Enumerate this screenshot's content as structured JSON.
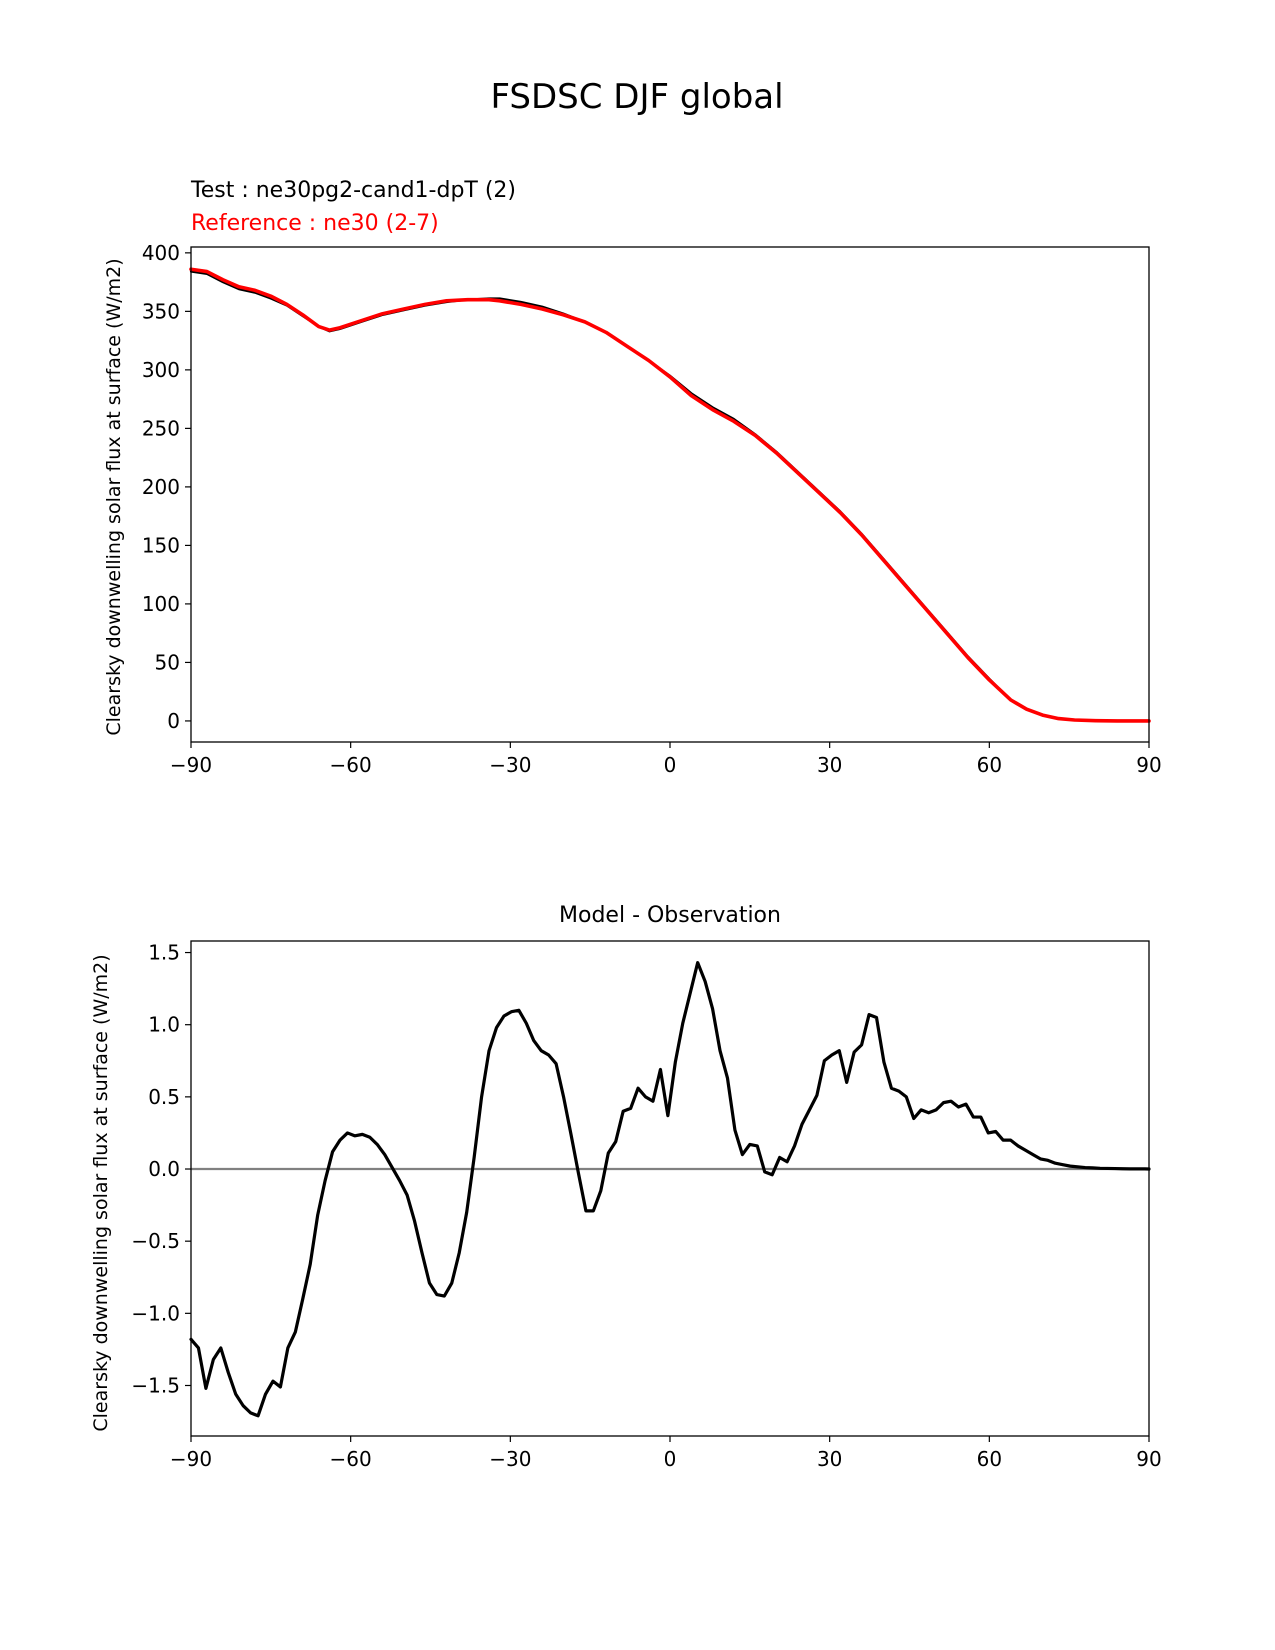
{
  "suptitle": "FSDSC DJF global",
  "chart_data": [
    {
      "type": "line",
      "title": "",
      "legend_test": "Test : ne30pg2-cand1-dpT (2)",
      "legend_ref": "Reference : ne30 (2-7)",
      "ylabel": "Clearsky downwelling solar flux at surface (W/m2)",
      "xlabel": "",
      "xlim": [
        -90,
        90
      ],
      "ylim": [
        -18,
        405
      ],
      "xticks": [
        -90,
        -60,
        -30,
        0,
        30,
        60,
        90
      ],
      "xtick_labels": [
        "−90",
        "−60",
        "−30",
        "0",
        "30",
        "60",
        "90"
      ],
      "yticks": [
        0,
        50,
        100,
        150,
        200,
        250,
        300,
        350,
        400
      ],
      "ytick_labels": [
        "0",
        "50",
        "100",
        "150",
        "200",
        "250",
        "300",
        "350",
        "400"
      ],
      "series": [
        {
          "name": "Test : ne30pg2-cand1-dpT (2)",
          "color": "#000000",
          "x": [
            -90,
            -87,
            -84,
            -81,
            -78,
            -75,
            -72,
            -69,
            -66,
            -64,
            -62,
            -58,
            -54,
            -50,
            -46,
            -42,
            -38,
            -34,
            -32,
            -28,
            -24,
            -20,
            -16,
            -12,
            -8,
            -4,
            0,
            4,
            8,
            12,
            16,
            20,
            24,
            28,
            32,
            36,
            40,
            44,
            48,
            52,
            56,
            60,
            64,
            67,
            70,
            73,
            76,
            80,
            84,
            88,
            90
          ],
          "values": [
            384,
            382,
            375,
            369,
            366,
            361,
            355,
            346,
            337,
            333,
            335,
            341,
            347,
            351,
            355,
            358,
            360,
            361,
            361,
            358,
            354,
            348,
            341,
            332,
            320,
            308,
            295,
            280,
            268,
            258,
            245,
            230,
            213,
            196,
            179,
            160,
            139,
            118,
            97,
            76,
            55,
            36,
            18,
            10,
            5,
            2,
            0.8,
            0.2,
            0,
            0,
            0
          ]
        },
        {
          "name": "Reference : ne30 (2-7)",
          "color": "#ff0000",
          "x": [
            -90,
            -87,
            -84,
            -81,
            -78,
            -75,
            -72,
            -69,
            -66,
            -64,
            -62,
            -58,
            -54,
            -50,
            -46,
            -42,
            -38,
            -34,
            -32,
            -28,
            -24,
            -20,
            -16,
            -12,
            -8,
            -4,
            0,
            4,
            8,
            12,
            16,
            20,
            24,
            28,
            32,
            36,
            40,
            44,
            48,
            52,
            56,
            60,
            64,
            67,
            70,
            73,
            76,
            80,
            84,
            88,
            90
          ],
          "values": [
            386,
            384,
            377,
            371,
            368,
            363,
            356,
            347,
            337,
            334,
            336,
            342,
            348,
            352,
            356,
            359,
            360,
            360,
            359,
            356,
            352,
            347,
            341,
            332,
            320,
            308,
            294,
            278,
            266,
            256,
            244,
            229,
            212,
            195,
            178,
            159,
            138,
            117,
            96,
            75,
            54,
            35,
            18,
            10,
            5,
            2,
            0.8,
            0.2,
            0,
            0,
            0
          ]
        }
      ]
    },
    {
      "type": "line",
      "title": "Model - Observation",
      "ylabel": "Clearsky downwelling solar flux at surface (W/m2)",
      "xlabel": "",
      "xlim": [
        -90,
        90
      ],
      "ylim": [
        -1.85,
        1.58
      ],
      "xticks": [
        -90,
        -60,
        -30,
        0,
        30,
        60,
        90
      ],
      "xtick_labels": [
        "−90",
        "−60",
        "−30",
        "0",
        "30",
        "60",
        "90"
      ],
      "yticks": [
        -1.5,
        -1.0,
        -0.5,
        0.0,
        0.5,
        1.0,
        1.5
      ],
      "ytick_labels": [
        "−1.5",
        "−1.0",
        "−0.5",
        "0.0",
        "0.5",
        "1.0",
        "1.5"
      ],
      "zero_line_color": "#808080",
      "series": [
        {
          "color": "#000000",
          "x": [
            -90,
            -88.6,
            -87.2,
            -85.8,
            -84.4,
            -83,
            -81.6,
            -80.2,
            -78.8,
            -77.4,
            -76,
            -74.6,
            -73.2,
            -71.8,
            -70.4,
            -69,
            -67.6,
            -66.2,
            -64.8,
            -63.4,
            -62,
            -60.6,
            -59.2,
            -57.8,
            -56.4,
            -55,
            -53.6,
            -52.2,
            -50.8,
            -49.4,
            -48,
            -46.6,
            -45.2,
            -43.8,
            -42.4,
            -41,
            -39.6,
            -38.2,
            -36.8,
            -35.4,
            -34,
            -32.6,
            -31.2,
            -29.8,
            -28.4,
            -27,
            -25.6,
            -24.2,
            -22.8,
            -21.4,
            -20,
            -18.6,
            -17.2,
            -15.8,
            -14.4,
            -13,
            -11.6,
            -10.2,
            -8.8,
            -7.4,
            -6,
            -4.6,
            -3.2,
            -1.8,
            -0.4,
            1,
            2.4,
            3.8,
            5.2,
            6.6,
            8,
            9.4,
            10.8,
            12.2,
            13.6,
            15,
            16.4,
            17.8,
            19.2,
            20.6,
            22,
            23.4,
            24.8,
            26.2,
            27.6,
            29,
            30.4,
            31.8,
            33.2,
            34.6,
            36,
            37.4,
            38.8,
            40.2,
            41.6,
            43,
            44.4,
            45.8,
            47.2,
            48.6,
            50,
            51.4,
            52.8,
            54.2,
            55.6,
            57,
            58.4,
            59.8,
            61.2,
            62.6,
            64,
            65.4,
            66.8,
            68.2,
            69.6,
            71,
            72.4,
            73.8,
            75.2,
            76.6,
            78,
            79.4,
            80.8,
            82.2,
            83.6,
            85,
            86.4,
            87.8,
            89.2,
            90
          ],
          "values": [
            -1.18,
            -1.24,
            -1.52,
            -1.32,
            -1.24,
            -1.41,
            -1.56,
            -1.64,
            -1.69,
            -1.71,
            -1.56,
            -1.47,
            -1.51,
            -1.24,
            -1.13,
            -0.9,
            -0.66,
            -0.32,
            -0.08,
            0.12,
            0.2,
            0.25,
            0.23,
            0.24,
            0.22,
            0.17,
            0.1,
            0.01,
            -0.08,
            -0.18,
            -0.36,
            -0.58,
            -0.79,
            -0.87,
            -0.88,
            -0.79,
            -0.58,
            -0.3,
            0.08,
            0.5,
            0.82,
            0.98,
            1.06,
            1.09,
            1.1,
            1.01,
            0.89,
            0.82,
            0.79,
            0.73,
            0.5,
            0.24,
            -0.03,
            -0.29,
            -0.29,
            -0.15,
            0.11,
            0.19,
            0.4,
            0.42,
            0.56,
            0.5,
            0.47,
            0.69,
            0.37,
            0.74,
            1.01,
            1.22,
            1.43,
            1.3,
            1.11,
            0.82,
            0.63,
            0.27,
            0.1,
            0.17,
            0.16,
            -0.02,
            -0.04,
            0.08,
            0.05,
            0.16,
            0.31,
            0.41,
            0.51,
            0.75,
            0.79,
            0.82,
            0.6,
            0.81,
            0.86,
            1.07,
            1.05,
            0.74,
            0.56,
            0.54,
            0.5,
            0.35,
            0.41,
            0.39,
            0.41,
            0.46,
            0.47,
            0.43,
            0.45,
            0.36,
            0.36,
            0.25,
            0.26,
            0.2,
            0.2,
            0.16,
            0.13,
            0.1,
            0.07,
            0.06,
            0.04,
            0.03,
            0.02,
            0.015,
            0.01,
            0.008,
            0.005,
            0.004,
            0.003,
            0.002,
            0.001,
            0.001,
            0.001,
            0.0
          ]
        }
      ]
    }
  ]
}
